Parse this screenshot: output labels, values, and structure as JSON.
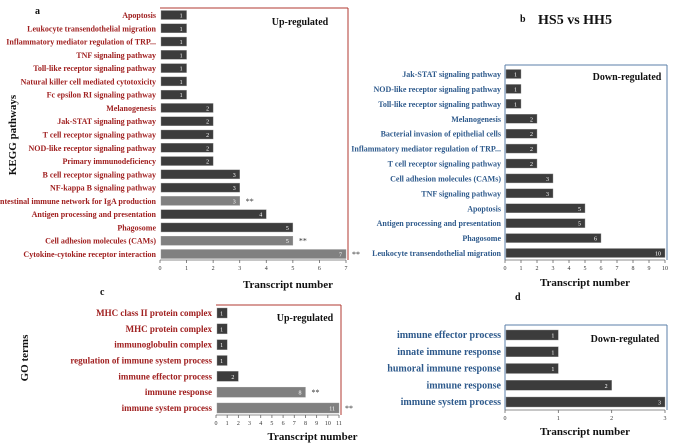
{
  "figure_title": "HS5 vs HH5",
  "chart_data": [
    {
      "panel": "a",
      "type": "bar",
      "orientation": "horizontal",
      "ylabel": "KEGG pathways",
      "xlabel": "Transcript number",
      "annotation": "Up-regulated",
      "xlim": [
        0,
        7
      ],
      "xticks": [
        0,
        1,
        2,
        3,
        4,
        5,
        6,
        7
      ],
      "label_color": "#a02020",
      "frame_color": "#b03a30",
      "categories": [
        "Apoptosis",
        "Leukocyte transendothelial migration",
        "Inflammatory mediator regulation of TRP...",
        "TNF signaling pathway",
        "Toll-like receptor signaling pathway",
        "Natural killer cell mediated cytotoxicity",
        "Fc epsilon RI signaling pathway",
        "Melanogenesis",
        "Jak-STAT signaling pathway",
        "T cell receptor signaling pathway",
        "NOD-like receptor signaling pathway",
        "Primary immunodeficiency",
        "B cell receptor signaling pathway",
        "NF-kappa B signaling pathway",
        "Intestinal immune network for IgA production",
        "Antigen processing and presentation",
        "Phagosome",
        "Cell adhesion molecules (CAMs)",
        "Cytokine-cytokine receptor interaction"
      ],
      "values": [
        1,
        1,
        1,
        1,
        1,
        1,
        1,
        2,
        2,
        2,
        2,
        2,
        3,
        3,
        3,
        4,
        5,
        5,
        7
      ],
      "significance": [
        "",
        "",
        "",
        "",
        "",
        "",
        "",
        "",
        "",
        "",
        "",
        "",
        "",
        "",
        "**",
        "",
        "",
        "**",
        "**"
      ]
    },
    {
      "panel": "b",
      "type": "bar",
      "orientation": "horizontal",
      "ylabel": "",
      "xlabel": "Transcript number",
      "annotation": "Down-regulated",
      "xlim": [
        0,
        10
      ],
      "xticks": [
        0,
        1,
        2,
        3,
        4,
        5,
        6,
        7,
        8,
        9,
        10
      ],
      "label_color": "#2e5a8c",
      "frame_color": "#5b7fa8",
      "categories": [
        "Jak-STAT signaling pathway",
        "NOD-like receptor signaling pathway",
        "Toll-like receptor signaling pathway",
        "Melanogenesis",
        "Bacterial invasion of epithelial cells",
        "Inflammatory mediator regulation of TRP...",
        "T cell receptor signaling pathway",
        "Cell adhesion molecules (CAMs)",
        "TNF signaling pathway",
        "Apoptosis",
        "Antigen processing and presentation",
        "Phagosome",
        "Leukocyte transendothelial migration"
      ],
      "values": [
        1,
        1,
        1,
        2,
        2,
        2,
        2,
        3,
        3,
        5,
        5,
        6,
        10
      ],
      "significance": [
        "",
        "",
        "",
        "",
        "",
        "",
        "",
        "",
        "",
        "",
        "",
        "",
        ""
      ]
    },
    {
      "panel": "c",
      "type": "bar",
      "orientation": "horizontal",
      "ylabel": "GO terms",
      "xlabel": "Transcript number",
      "annotation": "Up-regulated",
      "xlim": [
        0,
        11
      ],
      "xticks": [
        0,
        1,
        2,
        3,
        4,
        5,
        6,
        7,
        8,
        9,
        10,
        11
      ],
      "label_color": "#a02020",
      "frame_color": "#b03a30",
      "categories": [
        "MHC class II protein complex",
        "MHC protein complex",
        "immunoglobulin complex",
        "regulation of immune system process",
        "immune effector process",
        "immune response",
        "immune system process"
      ],
      "values": [
        1,
        1,
        1,
        1,
        2,
        8,
        11
      ],
      "significance": [
        "",
        "",
        "",
        "",
        "",
        "**",
        "**"
      ]
    },
    {
      "panel": "d",
      "type": "bar",
      "orientation": "horizontal",
      "ylabel": "",
      "xlabel": "Transcript number",
      "annotation": "Down-regulated",
      "xlim": [
        0,
        3
      ],
      "xticks": [
        0,
        1,
        2,
        3
      ],
      "label_color": "#2e5a8c",
      "frame_color": "#5b7fa8",
      "categories": [
        "immune effector process",
        "innate immune response",
        "humoral immune response",
        "immune response",
        "immune system process"
      ],
      "values": [
        1,
        1,
        1,
        2,
        3
      ],
      "significance": [
        "",
        "",
        "",
        "",
        ""
      ]
    }
  ]
}
